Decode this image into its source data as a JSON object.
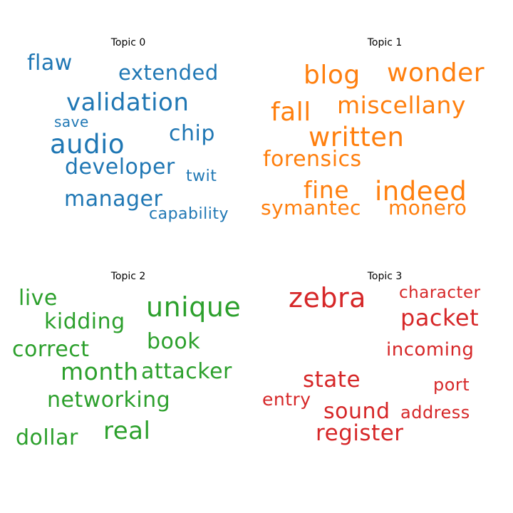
{
  "chart_data": [
    {
      "type": "wordcloud",
      "title": "Topic 0",
      "color": "#1f77b4",
      "words": [
        "flaw",
        "extended",
        "validation",
        "save",
        "chip",
        "audio",
        "developer",
        "twit",
        "manager",
        "capability"
      ]
    },
    {
      "type": "wordcloud",
      "title": "Topic 1",
      "color": "#ff7f0e",
      "words": [
        "blog",
        "wonder",
        "fall",
        "miscellany",
        "written",
        "forensics",
        "fine",
        "indeed",
        "symantec",
        "monero"
      ]
    },
    {
      "type": "wordcloud",
      "title": "Topic 2",
      "color": "#2ca02c",
      "words": [
        "live",
        "unique",
        "kidding",
        "book",
        "correct",
        "month",
        "attacker",
        "networking",
        "dollar",
        "real"
      ]
    },
    {
      "type": "wordcloud",
      "title": "Topic 3",
      "color": "#d62728",
      "words": [
        "zebra",
        "character",
        "packet",
        "incoming",
        "state",
        "port",
        "entry",
        "sound",
        "address",
        "register"
      ]
    }
  ]
}
